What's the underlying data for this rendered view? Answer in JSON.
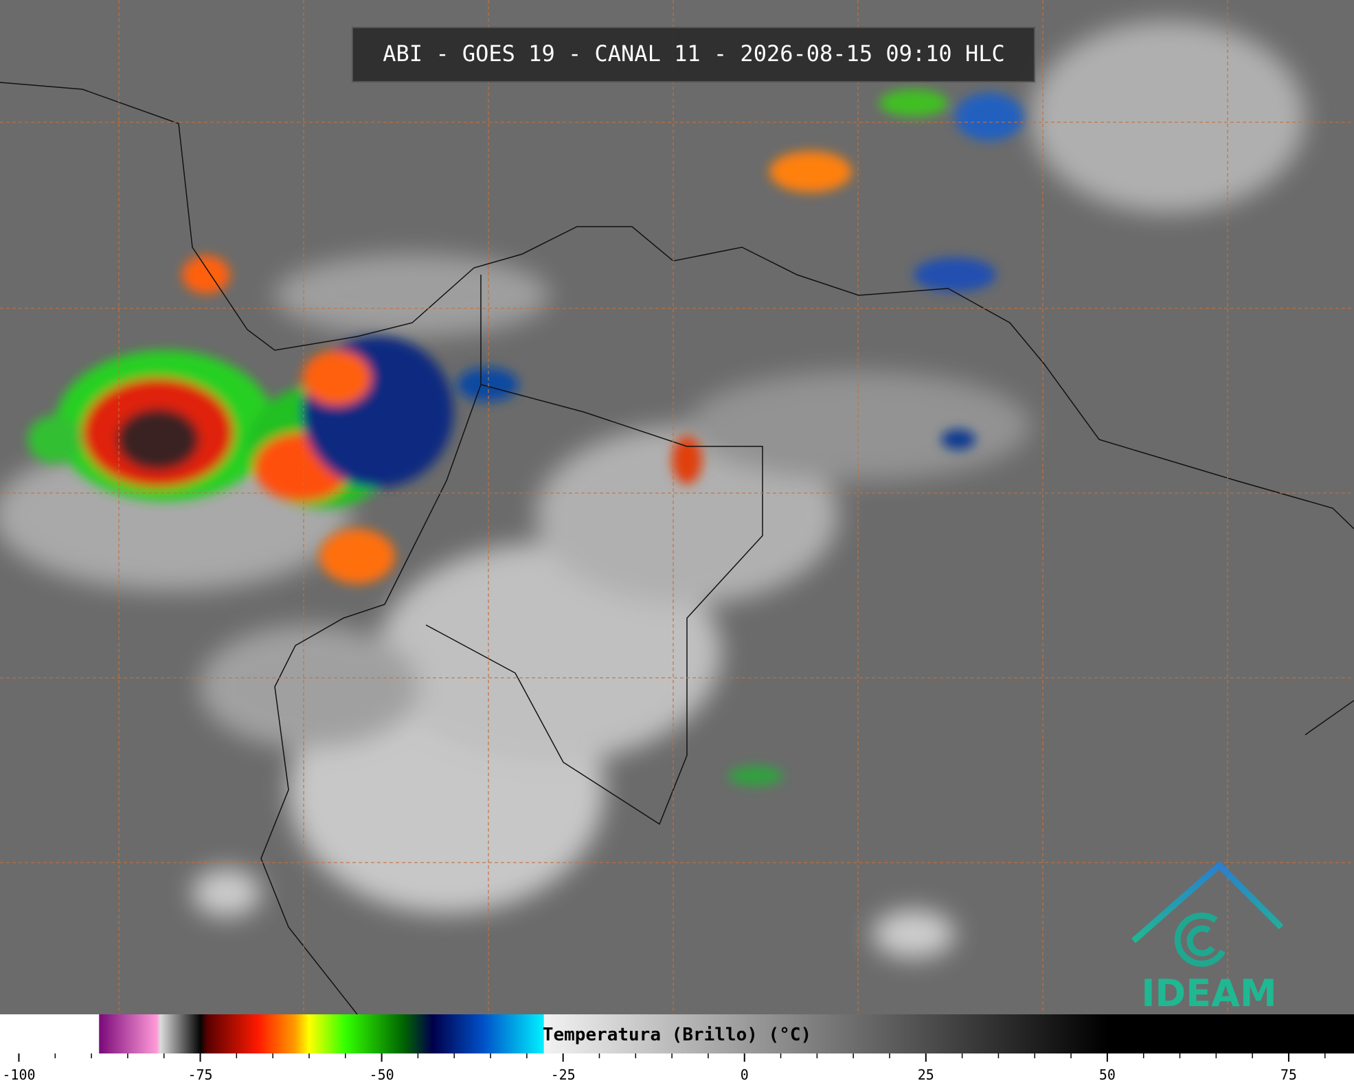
{
  "header": {
    "title": "ABI - GOES 19 - CANAL 11 - 2026-08-15 09:10 HLC"
  },
  "logo": {
    "text": "IDEAM"
  },
  "chart_data": {
    "type": "colorbar",
    "xlabel": "Temperatura (Brillo) (°C)",
    "xlim": [
      -102.6,
      84
    ],
    "xticks": [
      -100,
      -75,
      -50,
      -25,
      0,
      25,
      50,
      75
    ],
    "minor_xticks": [
      -95,
      -90,
      -85,
      -80,
      -70,
      -65,
      -60,
      -55,
      -45,
      -40,
      -35,
      -30,
      -20,
      -15,
      -10,
      -5,
      5,
      10,
      15,
      20,
      30,
      35,
      40,
      45,
      55,
      60,
      65,
      70,
      80
    ],
    "colorscale": [
      {
        "value": -102.6,
        "color": "#ffffff"
      },
      {
        "value": -89,
        "color": "#ffffff"
      },
      {
        "value": -88.9,
        "color": "#7a0a7a"
      },
      {
        "value": -81,
        "color": "#ff9ad8"
      },
      {
        "value": -80.5,
        "color": "#dcdcdc"
      },
      {
        "value": -75,
        "color": "#050505"
      },
      {
        "value": -74,
        "color": "#5a0000"
      },
      {
        "value": -67,
        "color": "#ff1a00"
      },
      {
        "value": -62,
        "color": "#ff9a00"
      },
      {
        "value": -60,
        "color": "#ffff00"
      },
      {
        "value": -55,
        "color": "#33ff00"
      },
      {
        "value": -47,
        "color": "#006400"
      },
      {
        "value": -43,
        "color": "#00004a"
      },
      {
        "value": -36,
        "color": "#0050c8"
      },
      {
        "value": -27.7,
        "color": "#00f0ff"
      },
      {
        "value": -27.6,
        "color": "#f2f2f2"
      },
      {
        "value": 50,
        "color": "#000000"
      },
      {
        "value": 84,
        "color": "#000000"
      }
    ]
  }
}
